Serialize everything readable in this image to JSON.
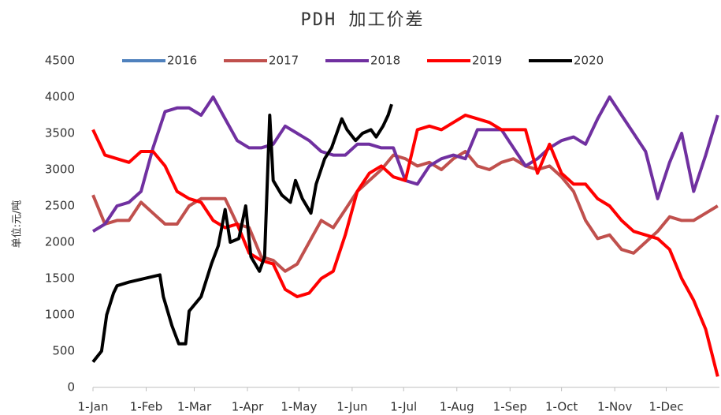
{
  "chart_data": {
    "type": "line",
    "title": "PDH 加工价差",
    "y_label": "单位:元/吨",
    "xlim": [
      0,
      365
    ],
    "ylim": [
      0,
      4500
    ],
    "xticks": [
      {
        "value": 0,
        "label": "1-Jan"
      },
      {
        "value": 31,
        "label": "1-Feb"
      },
      {
        "value": 59,
        "label": "1-Mar"
      },
      {
        "value": 90,
        "label": "1-Apr"
      },
      {
        "value": 120,
        "label": "1-May"
      },
      {
        "value": 151,
        "label": "1-Jun"
      },
      {
        "value": 181,
        "label": "1-Jul"
      },
      {
        "value": 212,
        "label": "1-Aug"
      },
      {
        "value": 243,
        "label": "1-Sep"
      },
      {
        "value": 273,
        "label": "1-Oct"
      },
      {
        "value": 304,
        "label": "1-Nov"
      },
      {
        "value": 334,
        "label": "1-Dec"
      }
    ],
    "yticks": [
      0,
      500,
      1000,
      1500,
      2000,
      2500,
      3000,
      3500,
      4000,
      4500
    ],
    "grid": false,
    "legend": "top",
    "series": [
      {
        "name": "2016",
        "color": "#4f81bd",
        "x": [],
        "values": []
      },
      {
        "name": "2017",
        "color": "#c0504d",
        "x": [
          0,
          7,
          14,
          21,
          28,
          35,
          42,
          49,
          56,
          63,
          70,
          77,
          84,
          91,
          98,
          105,
          112,
          119,
          126,
          133,
          140,
          147,
          154,
          161,
          168,
          175,
          182,
          189,
          196,
          203,
          210,
          217,
          224,
          231,
          238,
          245,
          252,
          259,
          266,
          273,
          280,
          287,
          294,
          301,
          308,
          315,
          322,
          329,
          336,
          343,
          350,
          357,
          364
        ],
        "values": [
          2650,
          2250,
          2300,
          2300,
          2550,
          2400,
          2250,
          2250,
          2500,
          2600,
          2600,
          2600,
          2250,
          2200,
          1800,
          1750,
          1600,
          1700,
          2000,
          2300,
          2200,
          2450,
          2700,
          2850,
          3000,
          3200,
          3150,
          3050,
          3100,
          3000,
          3150,
          3250,
          3050,
          3000,
          3100,
          3150,
          3050,
          3000,
          3050,
          2900,
          2700,
          2300,
          2050,
          2100,
          1900,
          1850,
          2000,
          2150,
          2350,
          2300,
          2300,
          2400,
          2500
        ]
      },
      {
        "name": "2018",
        "color": "#7030a0",
        "x": [
          0,
          7,
          14,
          21,
          28,
          35,
          42,
          49,
          56,
          63,
          70,
          77,
          84,
          91,
          98,
          105,
          112,
          119,
          126,
          133,
          140,
          147,
          154,
          161,
          168,
          175,
          182,
          189,
          196,
          203,
          210,
          217,
          224,
          231,
          238,
          245,
          252,
          259,
          266,
          273,
          280,
          287,
          294,
          301,
          308,
          315,
          322,
          329,
          336,
          343,
          350,
          357,
          364
        ],
        "values": [
          2150,
          2250,
          2500,
          2550,
          2700,
          3300,
          3800,
          3850,
          3850,
          3750,
          4000,
          3700,
          3400,
          3300,
          3300,
          3350,
          3600,
          3500,
          3400,
          3250,
          3200,
          3200,
          3350,
          3350,
          3300,
          3300,
          2850,
          2800,
          3050,
          3150,
          3200,
          3150,
          3550,
          3550,
          3550,
          3300,
          3050,
          3150,
          3300,
          3400,
          3450,
          3350,
          3700,
          4000,
          3750,
          3500,
          3250,
          2600,
          3100,
          3500,
          2700,
          3200,
          3750
        ]
      },
      {
        "name": "2019",
        "color": "#ff0000",
        "x": [
          0,
          7,
          14,
          21,
          28,
          35,
          42,
          49,
          56,
          63,
          70,
          77,
          84,
          91,
          98,
          105,
          112,
          119,
          126,
          133,
          140,
          147,
          154,
          161,
          168,
          175,
          182,
          189,
          196,
          203,
          210,
          217,
          224,
          231,
          238,
          245,
          252,
          259,
          266,
          273,
          280,
          287,
          294,
          301,
          308,
          315,
          322,
          329,
          336,
          343,
          350,
          357,
          364
        ],
        "values": [
          3550,
          3200,
          3150,
          3100,
          3250,
          3250,
          3050,
          2700,
          2600,
          2550,
          2300,
          2200,
          2250,
          1850,
          1750,
          1700,
          1350,
          1250,
          1300,
          1500,
          1600,
          2100,
          2700,
          2950,
          3050,
          2900,
          2850,
          3550,
          3600,
          3550,
          3650,
          3750,
          3700,
          3650,
          3550,
          3550,
          3550,
          2950,
          3350,
          2950,
          2800,
          2800,
          2600,
          2500,
          2300,
          2150,
          2100,
          2050,
          1900,
          1500,
          1200,
          800,
          150
        ]
      },
      {
        "name": "2020",
        "color": "#000000",
        "x": [
          0,
          5,
          8,
          12,
          14,
          21,
          39,
          41,
          46,
          50,
          54,
          56,
          63,
          69,
          73,
          77,
          80,
          85,
          89,
          92,
          97,
          100,
          103,
          105,
          110,
          115,
          118,
          122,
          127,
          130,
          135,
          139,
          145,
          148,
          153,
          157,
          162,
          165,
          169,
          172,
          174
        ],
        "values": [
          350,
          500,
          1000,
          1300,
          1400,
          1450,
          1550,
          1250,
          850,
          600,
          600,
          1050,
          1250,
          1700,
          1950,
          2450,
          2000,
          2050,
          2500,
          1800,
          1600,
          1800,
          3750,
          2850,
          2650,
          2550,
          2850,
          2600,
          2400,
          2800,
          3150,
          3300,
          3700,
          3550,
          3400,
          3500,
          3550,
          3450,
          3600,
          3750,
          3900
        ]
      }
    ]
  }
}
